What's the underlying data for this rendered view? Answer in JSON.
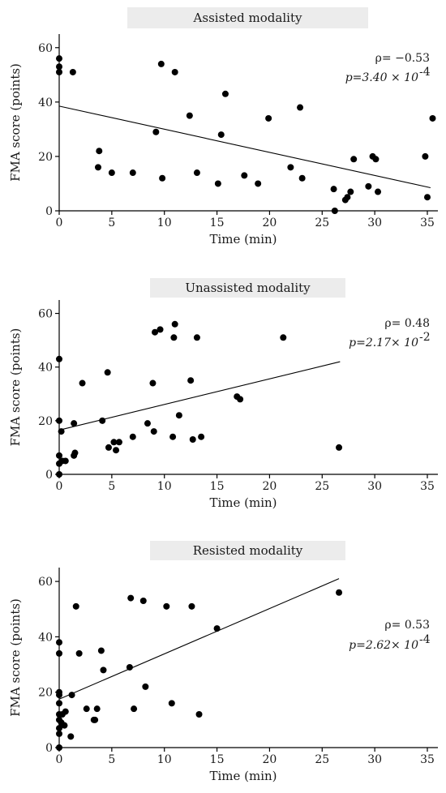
{
  "colors": {
    "title_box": "#ececec",
    "axis": "#000000",
    "points": "#000000",
    "fit_line": "#000000"
  },
  "chart_data": [
    {
      "type": "scatter",
      "title": "Assisted modality",
      "xlabel": "Time (min)",
      "ylabel": "FMA score (points)",
      "xlim": [
        0,
        36
      ],
      "ylim": [
        0,
        65
      ],
      "xticks": [
        "0",
        "5",
        "10",
        "15",
        "20",
        "25",
        "30",
        "35"
      ],
      "yticks": [
        "0",
        "20",
        "40",
        "60"
      ],
      "grid": false,
      "stat_rho": "ρ= −0.53",
      "stat_p": "p=3.40 × 10",
      "stat_p_exp": "-4",
      "trend": {
        "x": [
          0,
          35.3
        ],
        "y": [
          38.5,
          8.5
        ]
      },
      "points": [
        {
          "x": 0,
          "y": 56
        },
        {
          "x": 0,
          "y": 53
        },
        {
          "x": 0,
          "y": 51
        },
        {
          "x": 1.3,
          "y": 51
        },
        {
          "x": 3.7,
          "y": 16
        },
        {
          "x": 3.8,
          "y": 22
        },
        {
          "x": 5,
          "y": 14
        },
        {
          "x": 7,
          "y": 14
        },
        {
          "x": 9.2,
          "y": 29
        },
        {
          "x": 9.7,
          "y": 54
        },
        {
          "x": 9.8,
          "y": 12
        },
        {
          "x": 11,
          "y": 51
        },
        {
          "x": 12.4,
          "y": 35
        },
        {
          "x": 13.1,
          "y": 14
        },
        {
          "x": 15.1,
          "y": 10
        },
        {
          "x": 15.4,
          "y": 28
        },
        {
          "x": 15.8,
          "y": 43
        },
        {
          "x": 17.6,
          "y": 13
        },
        {
          "x": 18.9,
          "y": 10
        },
        {
          "x": 19.9,
          "y": 34
        },
        {
          "x": 22,
          "y": 16
        },
        {
          "x": 22.9,
          "y": 38
        },
        {
          "x": 23.1,
          "y": 12
        },
        {
          "x": 26.1,
          "y": 8
        },
        {
          "x": 26.2,
          "y": 0
        },
        {
          "x": 27.2,
          "y": 4
        },
        {
          "x": 27.4,
          "y": 5
        },
        {
          "x": 27.7,
          "y": 7
        },
        {
          "x": 28,
          "y": 19
        },
        {
          "x": 29.4,
          "y": 9
        },
        {
          "x": 29.8,
          "y": 20
        },
        {
          "x": 30.1,
          "y": 19
        },
        {
          "x": 30.3,
          "y": 7
        },
        {
          "x": 34.8,
          "y": 20
        },
        {
          "x": 35,
          "y": 5
        },
        {
          "x": 35.5,
          "y": 34
        }
      ]
    },
    {
      "type": "scatter",
      "title": "Unassisted modality",
      "xlabel": "Time (min)",
      "ylabel": "FMA score (points)",
      "xlim": [
        0,
        36
      ],
      "ylim": [
        0,
        65
      ],
      "xticks": [
        "0",
        "5",
        "10",
        "15",
        "20",
        "25",
        "30",
        "35"
      ],
      "yticks": [
        "0",
        "20",
        "40",
        "60"
      ],
      "grid": false,
      "stat_rho": "ρ= 0.48",
      "stat_p": "p=2.17× 10",
      "stat_p_exp": "-2",
      "trend": {
        "x": [
          0,
          26.7
        ],
        "y": [
          16.5,
          42
        ]
      },
      "points": [
        {
          "x": 0,
          "y": 0
        },
        {
          "x": 0,
          "y": 4
        },
        {
          "x": 0,
          "y": 7
        },
        {
          "x": 0,
          "y": 20
        },
        {
          "x": 0,
          "y": 43
        },
        {
          "x": 0.2,
          "y": 16
        },
        {
          "x": 0.3,
          "y": 5
        },
        {
          "x": 0.6,
          "y": 5
        },
        {
          "x": 1.4,
          "y": 19
        },
        {
          "x": 1.4,
          "y": 7
        },
        {
          "x": 1.5,
          "y": 8
        },
        {
          "x": 2.2,
          "y": 34
        },
        {
          "x": 4.1,
          "y": 20
        },
        {
          "x": 4.6,
          "y": 38
        },
        {
          "x": 4.7,
          "y": 10
        },
        {
          "x": 5.2,
          "y": 12
        },
        {
          "x": 5.4,
          "y": 9
        },
        {
          "x": 5.7,
          "y": 12
        },
        {
          "x": 7,
          "y": 14
        },
        {
          "x": 8.4,
          "y": 19
        },
        {
          "x": 8.9,
          "y": 34
        },
        {
          "x": 9,
          "y": 16
        },
        {
          "x": 9.1,
          "y": 53
        },
        {
          "x": 9.6,
          "y": 54
        },
        {
          "x": 10.8,
          "y": 14
        },
        {
          "x": 10.9,
          "y": 51
        },
        {
          "x": 11,
          "y": 56
        },
        {
          "x": 11.4,
          "y": 22
        },
        {
          "x": 12.5,
          "y": 35
        },
        {
          "x": 12.7,
          "y": 13
        },
        {
          "x": 13.1,
          "y": 51
        },
        {
          "x": 13.5,
          "y": 14
        },
        {
          "x": 16.9,
          "y": 29
        },
        {
          "x": 17.2,
          "y": 28
        },
        {
          "x": 21.3,
          "y": 51
        },
        {
          "x": 26.6,
          "y": 10
        }
      ]
    },
    {
      "type": "scatter",
      "title": "Resisted modality",
      "xlabel": "Time (min)",
      "ylabel": "FMA score (points)",
      "xlim": [
        0,
        36
      ],
      "ylim": [
        0,
        65
      ],
      "xticks": [
        "0",
        "5",
        "10",
        "15",
        "20",
        "25",
        "30",
        "35"
      ],
      "yticks": [
        "0",
        "20",
        "40",
        "60"
      ],
      "grid": false,
      "stat_rho": "ρ= 0.53",
      "stat_p": "p=2.62× 10",
      "stat_p_exp": "-4",
      "trend": {
        "x": [
          0,
          26.6
        ],
        "y": [
          17.5,
          61
        ]
      },
      "points": [
        {
          "x": 0,
          "y": 0
        },
        {
          "x": 0,
          "y": 5
        },
        {
          "x": 0,
          "y": 7
        },
        {
          "x": 0,
          "y": 10
        },
        {
          "x": 0,
          "y": 12
        },
        {
          "x": 0,
          "y": 16
        },
        {
          "x": 0,
          "y": 19
        },
        {
          "x": 0,
          "y": 20
        },
        {
          "x": 0,
          "y": 34
        },
        {
          "x": 0,
          "y": 38
        },
        {
          "x": 0.2,
          "y": 9
        },
        {
          "x": 0.3,
          "y": 12
        },
        {
          "x": 0.5,
          "y": 8
        },
        {
          "x": 0.6,
          "y": 13
        },
        {
          "x": 1.1,
          "y": 4
        },
        {
          "x": 1.2,
          "y": 19
        },
        {
          "x": 1.6,
          "y": 51
        },
        {
          "x": 1.9,
          "y": 34
        },
        {
          "x": 2.6,
          "y": 14
        },
        {
          "x": 3.3,
          "y": 10
        },
        {
          "x": 3.4,
          "y": 10
        },
        {
          "x": 3.6,
          "y": 14
        },
        {
          "x": 4,
          "y": 35
        },
        {
          "x": 4.2,
          "y": 28
        },
        {
          "x": 6.7,
          "y": 29
        },
        {
          "x": 6.8,
          "y": 54
        },
        {
          "x": 7.1,
          "y": 14
        },
        {
          "x": 8,
          "y": 53
        },
        {
          "x": 8.2,
          "y": 22
        },
        {
          "x": 10.2,
          "y": 51
        },
        {
          "x": 10.7,
          "y": 16
        },
        {
          "x": 12.6,
          "y": 51
        },
        {
          "x": 13.3,
          "y": 12
        },
        {
          "x": 15,
          "y": 43
        },
        {
          "x": 26.6,
          "y": 56
        }
      ]
    }
  ]
}
